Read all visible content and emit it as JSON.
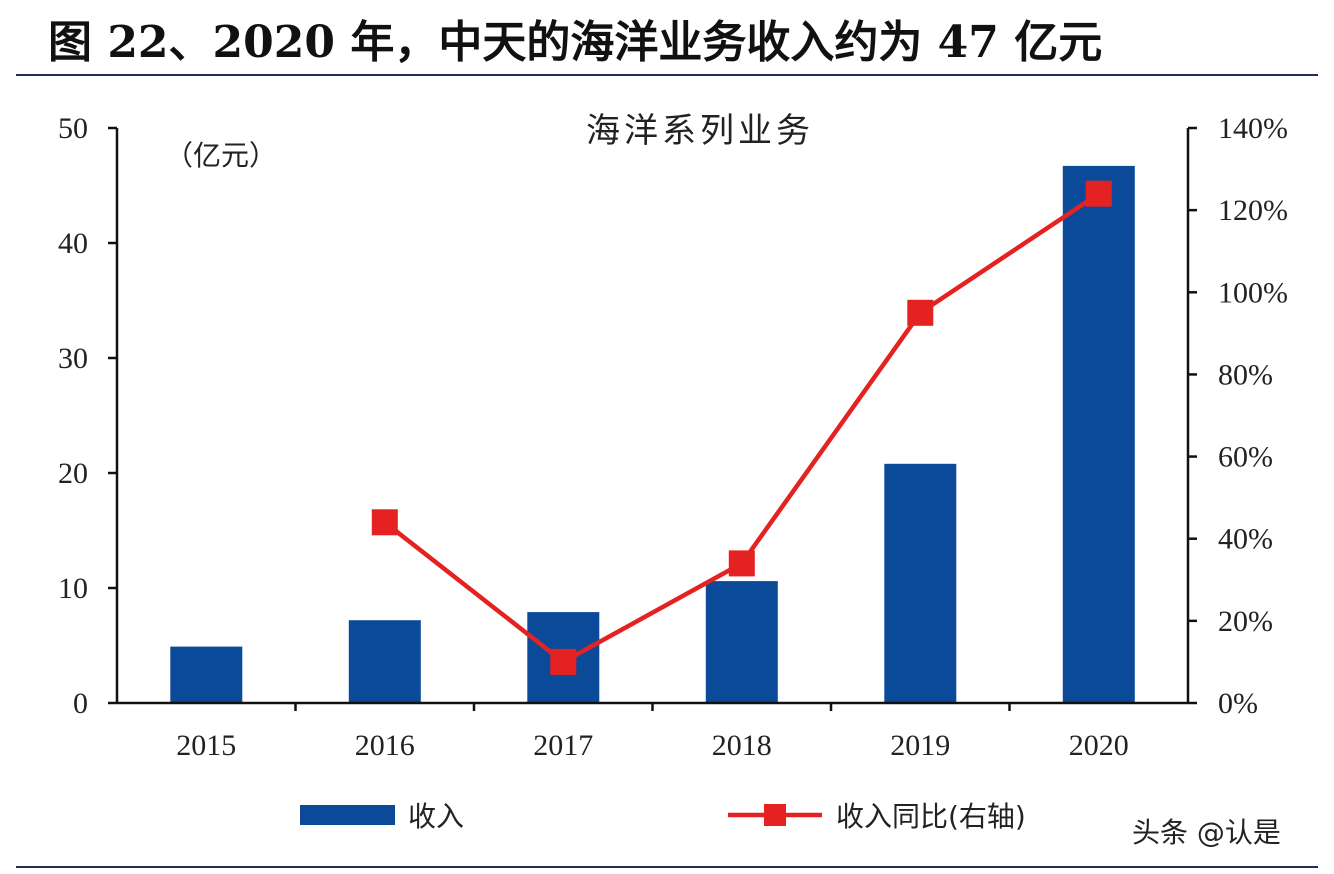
{
  "header": {
    "title": "图 22、2020 年，中天的海洋业务收入约为 47 亿元"
  },
  "watermark": "头条 @认是",
  "chart_data": {
    "type": "bar",
    "title": "海洋系列业务",
    "unit_label": "（亿元）",
    "categories": [
      "2015",
      "2016",
      "2017",
      "2018",
      "2019",
      "2020"
    ],
    "series": [
      {
        "name": "收入",
        "type": "bar",
        "axis": "left",
        "color": "#0a4a99",
        "values": [
          4.9,
          7.2,
          7.9,
          10.6,
          20.8,
          46.7
        ]
      },
      {
        "name": "收入同比(右轴)",
        "type": "line",
        "axis": "right",
        "color": "#e52222",
        "values": [
          null,
          44,
          10,
          34,
          95,
          124
        ]
      }
    ],
    "left_axis": {
      "min": 0,
      "max": 50,
      "ticks": [
        "0",
        "10",
        "20",
        "30",
        "40",
        "50"
      ]
    },
    "right_axis": {
      "min": 0,
      "max": 140,
      "ticks": [
        "0%",
        "20%",
        "40%",
        "60%",
        "80%",
        "100%",
        "120%",
        "140%"
      ]
    },
    "grid": false,
    "legend_position": "bottom"
  }
}
